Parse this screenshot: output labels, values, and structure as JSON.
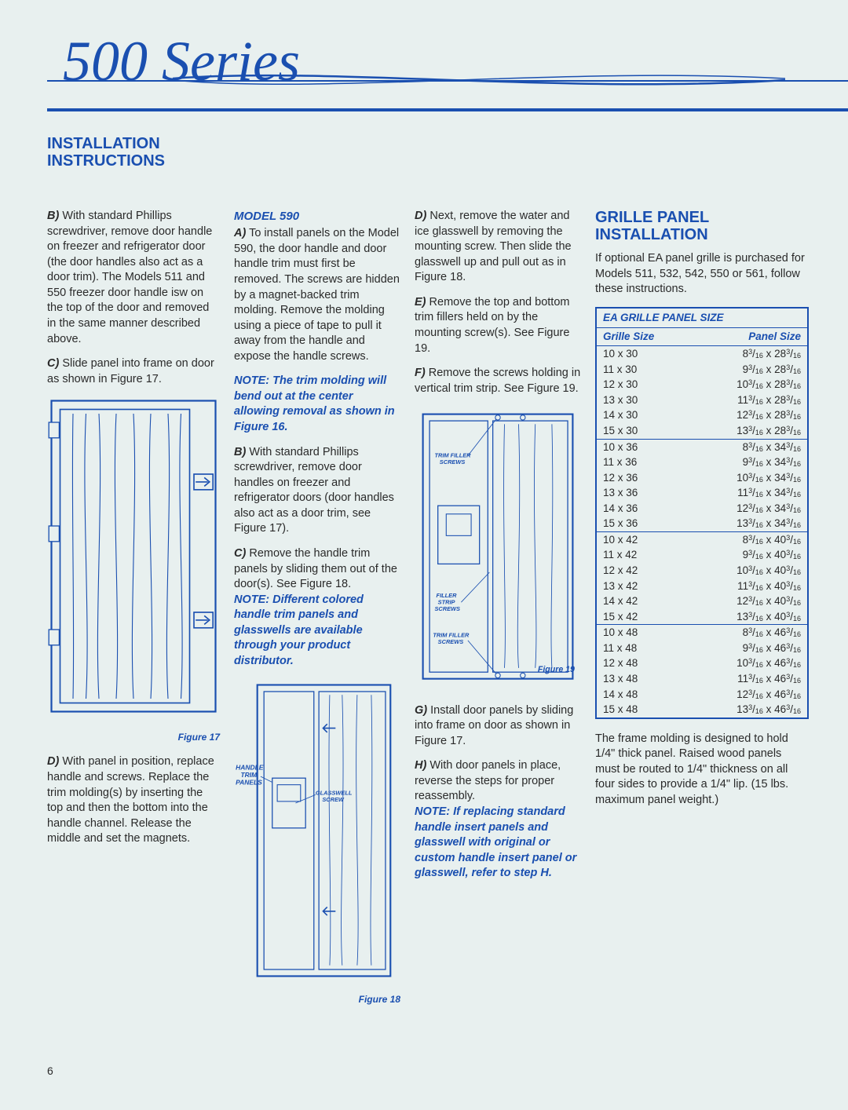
{
  "colors": {
    "accent": "#1a4fb0",
    "background": "#e8f0ef",
    "text": "#2a2a2a"
  },
  "header": {
    "series_script": "500 Series",
    "title_line1": "INSTALLATION",
    "title_line2": "INSTRUCTIONS"
  },
  "col1": {
    "pB": "With standard Phillips screwdriver, remove door handle on freezer and refrigerator door (the door handles also act as a door trim). The Models 511 and 550 freezer door handle isw on the top of the door and removed in the same manner described above.",
    "pC": "Slide panel into frame on door as shown in Figure 17.",
    "fig17_caption": "Figure 17",
    "pD": "With panel in position, replace handle and screws. Replace the trim molding(s) by inserting the top and then the bottom into the handle channel. Release the middle and set the magnets."
  },
  "col2": {
    "model_head": "MODEL 590",
    "pA": "To install panels on the Model 590, the door handle and door handle trim must first be removed. The screws are hidden by a magnet-backed trim molding. Remove the molding using a piece of tape to pull it away from the handle and expose the handle screws.",
    "noteA": "NOTE: The trim molding will bend out at the center allowing removal as shown in Figure 16.",
    "pB": "With standard Phillips screwdriver, remove door handles on freezer and refrigerator doors (door handles also act as a door trim, see Figure 17).",
    "pC": "Remove the handle trim panels by sliding them out of the door(s). See Figure 18.",
    "noteC": "NOTE: Different colored handle trim panels and glasswells are available through your product distributor.",
    "fig18_caption": "Figure 18",
    "fig18_labels": {
      "handle_trim_panels": "HANDLE\nTRIM\nPANELS",
      "glasswell_screw": "GLASSWELL\nSCREW"
    }
  },
  "col3": {
    "pD": "Next, remove the water and ice glasswell by removing the mounting screw. Then slide the glasswell up and pull out as in Figure 18.",
    "pE": "Remove the top and bottom trim fillers held on by the mounting screw(s). See Figure 19.",
    "pF": "Remove the screws holding in vertical trim strip. See Figure 19.",
    "fig19_caption": "Figure 19",
    "fig19_labels": {
      "trim_filler_screws": "TRIM FILLER\nSCREWS",
      "filler_strip_screws": "FILLER\nSTRIP\nSCREWS"
    },
    "pG": "Install door panels by sliding into frame on door as shown in Figure 17.",
    "pH": "With door panels in place, reverse the steps for proper reassembly.",
    "noteH": "NOTE: If replacing standard handle insert panels and glasswell with original or custom handle insert panel or glasswell, refer to step H."
  },
  "col4": {
    "section_title_line1": "GRILLE PANEL",
    "section_title_line2": "INSTALLATION",
    "intro": "If optional EA panel grille is purchased for Models 511, 532, 542, 550 or 561, follow these instructions.",
    "table": {
      "title": "EA GRILLE PANEL SIZE",
      "col1": "Grille Size",
      "col2": "Panel Size",
      "groups": [
        [
          {
            "g": "10 x 30",
            "p": "8|3|16| x 28|3|16|"
          },
          {
            "g": "11 x 30",
            "p": "9|3|16| x 28|3|16|"
          },
          {
            "g": "12 x 30",
            "p": "10|3|16| x 28|3|16|"
          },
          {
            "g": "13 x 30",
            "p": "11|3|16| x 28|3|16|"
          },
          {
            "g": "14 x 30",
            "p": "12|3|16| x 28|3|16|"
          },
          {
            "g": "15 x 30",
            "p": "13|3|16| x 28|3|16|"
          }
        ],
        [
          {
            "g": "10 x 36",
            "p": "8|3|16| x 34|3|16|"
          },
          {
            "g": "11 x 36",
            "p": "9|3|16| x 34|3|16|"
          },
          {
            "g": "12 x 36",
            "p": "10|3|16| x 34|3|16|"
          },
          {
            "g": "13 x 36",
            "p": "11|3|16| x 34|3|16|"
          },
          {
            "g": "14 x 36",
            "p": "12|3|16| x 34|3|16|"
          },
          {
            "g": "15 x 36",
            "p": "13|3|16| x 34|3|16|"
          }
        ],
        [
          {
            "g": "10 x 42",
            "p": "8|3|16| x 40|3|16|"
          },
          {
            "g": "11 x 42",
            "p": "9|3|16| x 40|3|16|"
          },
          {
            "g": "12 x 42",
            "p": "10|3|16| x 40|3|16|"
          },
          {
            "g": "13 x 42",
            "p": "11|3|16| x 40|3|16|"
          },
          {
            "g": "14 x 42",
            "p": "12|3|16| x 40|3|16|"
          },
          {
            "g": "15 x 42",
            "p": "13|3|16| x 40|3|16|"
          }
        ],
        [
          {
            "g": "10 x 48",
            "p": "8|3|16| x 46|3|16|"
          },
          {
            "g": "11 x 48",
            "p": "9|3|16| x 46|3|16|"
          },
          {
            "g": "12 x 48",
            "p": "10|3|16| x 46|3|16|"
          },
          {
            "g": "13 x 48",
            "p": "11|3|16| x 46|3|16|"
          },
          {
            "g": "14 x 48",
            "p": "12|3|16| x 46|3|16|"
          },
          {
            "g": "15 x 48",
            "p": "13|3|16| x 46|3|16|"
          }
        ]
      ]
    },
    "footer": "The frame molding is designed to hold 1/4\" thick panel. Raised wood panels must be routed to 1/4\" thickness on all four sides to provide a 1/4\" lip. (15 lbs. maximum panel weight.)"
  },
  "page_number": "6"
}
